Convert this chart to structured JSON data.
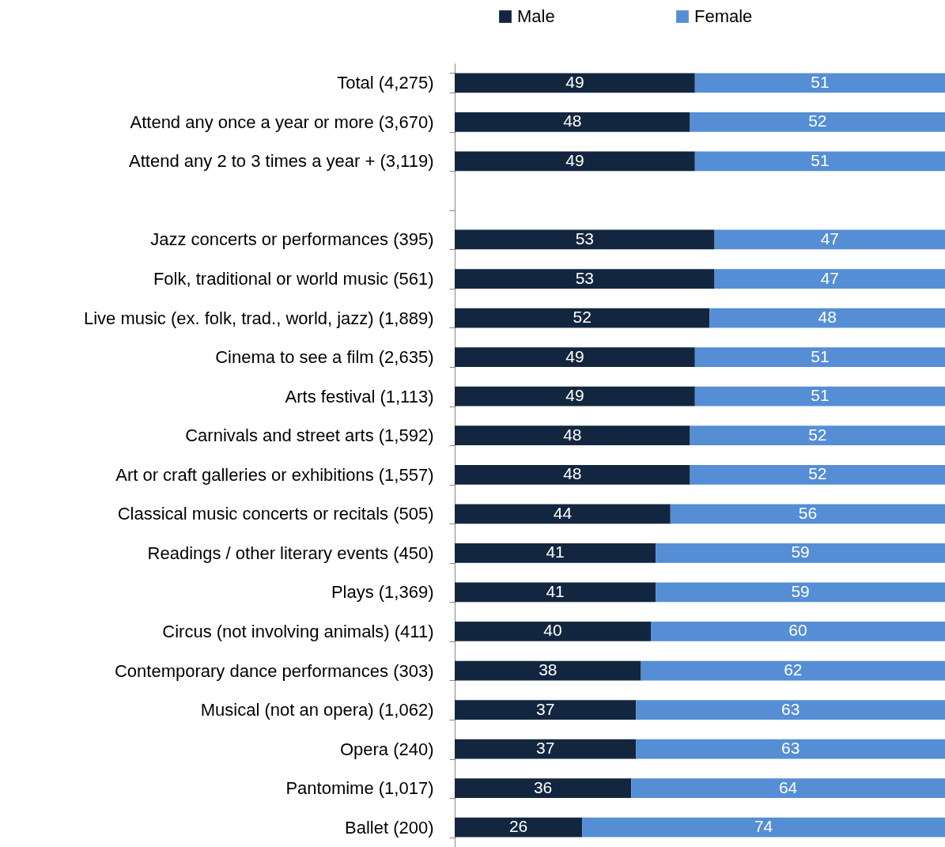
{
  "chart_data": {
    "type": "bar",
    "orientation": "horizontal",
    "stacked": true,
    "data_labels": true,
    "tick_labels": "y",
    "legend": "top",
    "xlim": [
      0,
      100
    ],
    "categories": [
      "Total (4,275)",
      "Attend any once a year or more (3,670)",
      "Attend any 2 to 3 times a year + (3,119)",
      null,
      "Jazz concerts or performances (395)",
      "Folk, traditional or world music (561)",
      "Live music (ex. folk, trad., world, jazz) (1,889)",
      "Cinema to see a film (2,635)",
      "Arts festival (1,113)",
      "Carnivals and street arts (1,592)",
      "Art or craft galleries or exhibitions (1,557)",
      "Classical music concerts or recitals (505)",
      "Readings / other literary events (450)",
      "Plays (1,369)",
      "Circus (not involving animals) (411)",
      "Contemporary dance performances (303)",
      "Musical (not an opera) (1,062)",
      "Opera (240)",
      "Pantomime (1,017)",
      "Ballet (200)"
    ],
    "series": [
      {
        "name": "Male",
        "color": "#13263f",
        "values": [
          49,
          48,
          49,
          null,
          53,
          53,
          52,
          49,
          49,
          48,
          48,
          44,
          41,
          41,
          40,
          38,
          37,
          37,
          36,
          26
        ]
      },
      {
        "name": "Female",
        "color": "#558ed5",
        "values": [
          51,
          52,
          51,
          null,
          47,
          47,
          48,
          51,
          51,
          52,
          52,
          56,
          59,
          59,
          60,
          62,
          63,
          63,
          64,
          74
        ]
      }
    ]
  }
}
